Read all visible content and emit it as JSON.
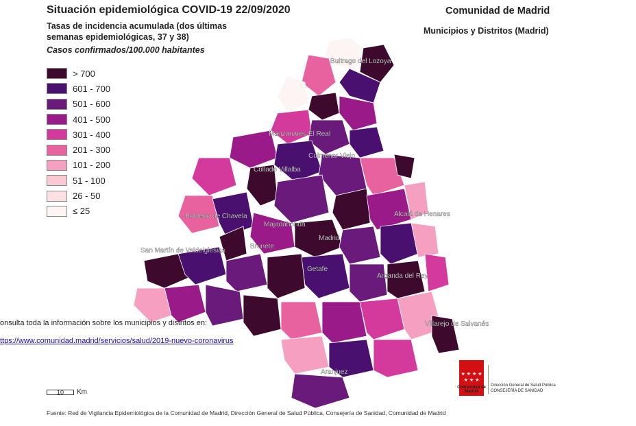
{
  "header": {
    "title": "Situación epidemiológica COVID-19  22/09/2020",
    "subtitle": "Tasas de incidencia acumulada (dos últimas semanas epidemiológicas, 37 y 38)",
    "units": "Casos confirmados/100.000 habitantes",
    "region": "Comunidad de Madrid",
    "region_sub": "Municipios y Distritos (Madrid)"
  },
  "legend": {
    "items": [
      {
        "label": "> 700",
        "color": "#3d0a2e"
      },
      {
        "label": "601 - 700",
        "color": "#4a1070"
      },
      {
        "label": "501 - 600",
        "color": "#6a1a7a"
      },
      {
        "label": "401 - 500",
        "color": "#9b1a8a"
      },
      {
        "label": "301 - 400",
        "color": "#d43a9c"
      },
      {
        "label": "201 - 300",
        "color": "#e8629f"
      },
      {
        "label": "101 - 200",
        "color": "#f5a0c0"
      },
      {
        "label": "51 - 100",
        "color": "#fbc9d3"
      },
      {
        "label": "26 - 50",
        "color": "#fde0e4"
      },
      {
        "label": "≤ 25",
        "color": "#fdf4f4"
      }
    ]
  },
  "map_labels": {
    "buitrago": "Buitrago del Lozoya",
    "manzanares": "Manzanares El Real",
    "colmenar": "Colmenar Viejo",
    "collado": "Collado Villalba",
    "alcala": "Alcalá de Henares",
    "robledo": "Robledo de Chavela",
    "majadahonda": "Majadahonda",
    "madrid": "Madrid",
    "brunete": "Brunete",
    "san_martin": "San Martín de Valdeiglesias",
    "getafe": "Getafe",
    "arganda": "Arganda del Rey",
    "villarejo": "Villarejo de Salvanés",
    "aranjuez": "Aranjuez"
  },
  "info": {
    "text": "onsulta toda la información sobre los municipios y distritos en:",
    "link": "ttps://www.comunidad.madrid/servicios/salud/2019-nuevo-coronavirus"
  },
  "scale": {
    "value": "10",
    "unit": "Km"
  },
  "source": "Fuente: Red de Vigilancia Epidemiológica de la Comunidad de Madrid, Dirección General de Salud Pública, Consejería de Sanidad, Comunidad de Madrid",
  "logo": {
    "stars": "★ ★ ★ ★ ★ ★ ★",
    "name": "Comunidad de Madrid",
    "dept1": "Dirección General de Salud Pública",
    "dept2": "CONSEJERÍA DE SANIDAD"
  }
}
